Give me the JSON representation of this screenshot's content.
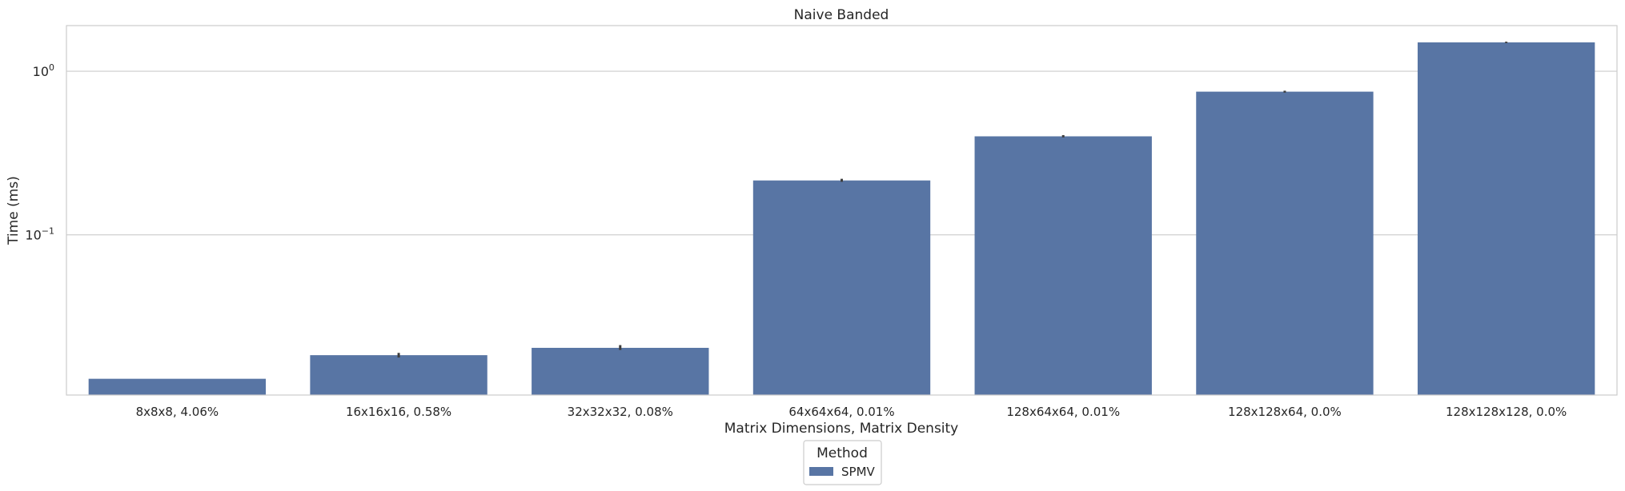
{
  "chart_data": {
    "type": "bar",
    "title": "Naive Banded",
    "xlabel": "Matrix Dimensions, Matrix Density",
    "ylabel": "Time (ms)",
    "yscale": "log",
    "ylim": [
      0.0105,
      1.9
    ],
    "yticks": [
      {
        "value": 0.1,
        "base": "10",
        "exp": "−1"
      },
      {
        "value": 1.0,
        "base": "10",
        "exp": "0"
      }
    ],
    "grid": "horizontal",
    "categories": [
      "8x8x8, 4.06%",
      "16x16x16, 0.58%",
      "32x32x32, 0.08%",
      "64x64x64, 0.01%",
      "128x64x64, 0.01%",
      "128x128x64, 0.0%",
      "128x128x128, 0.0%"
    ],
    "series": [
      {
        "name": "SPMV",
        "color": "#5875a4",
        "values": [
          0.0132,
          0.0184,
          0.0204,
          0.215,
          0.4,
          0.75,
          1.5
        ],
        "error": [
          [
            0.0132,
            0.0132
          ],
          [
            0.0178,
            0.019
          ],
          [
            0.0198,
            0.0212
          ],
          [
            0.211,
            0.22
          ],
          [
            0.394,
            0.407
          ],
          [
            0.74,
            0.76
          ],
          [
            1.485,
            1.515
          ]
        ]
      }
    ],
    "legend": {
      "title": "Method",
      "placement": "bottom-center"
    }
  }
}
